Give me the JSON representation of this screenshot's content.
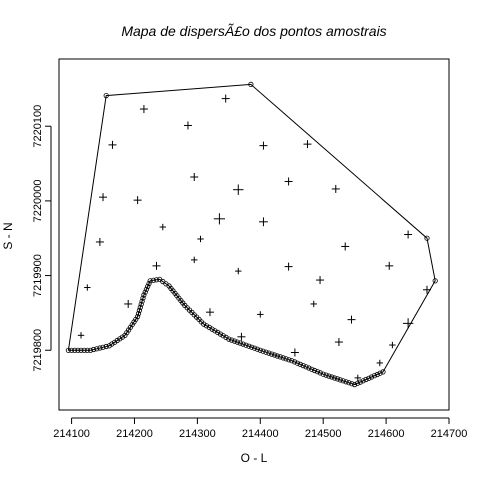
{
  "chart_data": {
    "type": "scatter",
    "title": "Mapa de dispersÃ£o dos pontos amostrais",
    "xlabel": "O - L",
    "ylabel": "S - N",
    "xlim": [
      214080,
      214700
    ],
    "ylim": [
      7219720,
      7220190
    ],
    "x_ticks": [
      214100,
      214200,
      214300,
      214400,
      214500,
      214600,
      214700
    ],
    "x_tick_labels": [
      "214100",
      "214200",
      "214300",
      "214400",
      "214500",
      "214600",
      "214700"
    ],
    "y_ticks": [
      7219800,
      7219900,
      7220000,
      7220100
    ],
    "y_tick_labels": [
      "7219800",
      "7219900",
      "7220000",
      "7220100"
    ],
    "grid": false,
    "legend": "none",
    "boundary_polygon": [
      [
        214095,
        7219800
      ],
      [
        214155,
        7220141
      ],
      [
        214385,
        7220156
      ],
      [
        214665,
        7219950
      ],
      [
        214678,
        7219893
      ],
      [
        214595,
        7219771
      ],
      [
        214550,
        7219754
      ],
      [
        214500,
        7219768
      ],
      [
        214450,
        7219786
      ],
      [
        214400,
        7219800
      ],
      [
        214350,
        7219815
      ],
      [
        214310,
        7219835
      ],
      [
        214280,
        7219860
      ],
      [
        214255,
        7219886
      ],
      [
        214240,
        7219895
      ],
      [
        214225,
        7219893
      ],
      [
        214215,
        7219874
      ],
      [
        214205,
        7219845
      ],
      [
        214185,
        7219820
      ],
      [
        214160,
        7219806
      ],
      [
        214130,
        7219800
      ]
    ],
    "samples": [
      [
        214215,
        7220123
      ],
      [
        214345,
        7220137
      ],
      [
        214285,
        7220101
      ],
      [
        214165,
        7220075
      ],
      [
        214405,
        7220074
      ],
      [
        214475,
        7220076
      ],
      [
        214295,
        7220032
      ],
      [
        214365,
        7220015
      ],
      [
        214445,
        7220026
      ],
      [
        214520,
        7220016
      ],
      [
        214150,
        7220005
      ],
      [
        214205,
        7220001
      ],
      [
        214245,
        7219965
      ],
      [
        214335,
        7219976
      ],
      [
        214405,
        7219972
      ],
      [
        214305,
        7219949
      ],
      [
        214145,
        7219945
      ],
      [
        214535,
        7219939
      ],
      [
        214635,
        7219955
      ],
      [
        214235,
        7219913
      ],
      [
        214295,
        7219921
      ],
      [
        214365,
        7219906
      ],
      [
        214445,
        7219912
      ],
      [
        214495,
        7219894
      ],
      [
        214605,
        7219913
      ],
      [
        214125,
        7219884
      ],
      [
        214665,
        7219881
      ],
      [
        214190,
        7219862
      ],
      [
        214485,
        7219862
      ],
      [
        214320,
        7219851
      ],
      [
        214400,
        7219848
      ],
      [
        214545,
        7219841
      ],
      [
        214635,
        7219836
      ],
      [
        214115,
        7219820
      ],
      [
        214370,
        7219818
      ],
      [
        214525,
        7219811
      ],
      [
        214610,
        7219807
      ],
      [
        214455,
        7219797
      ],
      [
        214590,
        7219783
      ],
      [
        214555,
        7219763
      ]
    ],
    "sample_sizes": [
      1,
      1,
      1,
      1,
      1,
      1,
      1,
      1.3,
      1,
      1,
      1,
      1,
      0.8,
      1.4,
      1.1,
      0.8,
      1,
      1,
      1,
      1,
      0.8,
      0.8,
      1,
      1,
      1,
      0.8,
      1,
      1,
      0.8,
      1,
      0.8,
      1,
      1.3,
      0.8,
      1,
      1,
      0.8,
      1,
      0.8,
      0.8
    ]
  }
}
